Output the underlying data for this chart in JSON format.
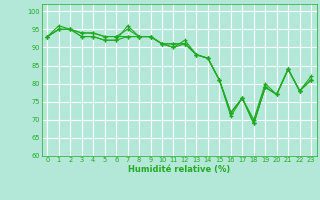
{
  "title": "",
  "xlabel": "Humidité relative (%)",
  "ylabel": "",
  "bg_color": "#b3e8d8",
  "grid_color": "#ffffff",
  "line_color": "#22aa22",
  "xlim": [
    -0.5,
    23.5
  ],
  "ylim": [
    60,
    102
  ],
  "yticks": [
    60,
    65,
    70,
    75,
    80,
    85,
    90,
    95,
    100
  ],
  "xticks": [
    0,
    1,
    2,
    3,
    4,
    5,
    6,
    7,
    8,
    9,
    10,
    11,
    12,
    13,
    14,
    15,
    16,
    17,
    18,
    19,
    20,
    21,
    22,
    23
  ],
  "series": [
    [
      93,
      95,
      95,
      93,
      93,
      92,
      92,
      96,
      93,
      93,
      91,
      90,
      91,
      88,
      87,
      81,
      71,
      76,
      69,
      79,
      77,
      84,
      78,
      81
    ],
    [
      93,
      96,
      95,
      94,
      94,
      93,
      93,
      95,
      93,
      93,
      91,
      90,
      92,
      88,
      87,
      81,
      72,
      76,
      70,
      80,
      77,
      84,
      78,
      82
    ],
    [
      93,
      95,
      95,
      94,
      94,
      93,
      93,
      93,
      93,
      93,
      91,
      91,
      91,
      88,
      87,
      81,
      72,
      76,
      69,
      79,
      77,
      84,
      78,
      81
    ],
    [
      93,
      95,
      95,
      93,
      93,
      92,
      92,
      93,
      93,
      93,
      91,
      91,
      91,
      88,
      87,
      81,
      72,
      76,
      69,
      79,
      77,
      84,
      78,
      81
    ]
  ]
}
